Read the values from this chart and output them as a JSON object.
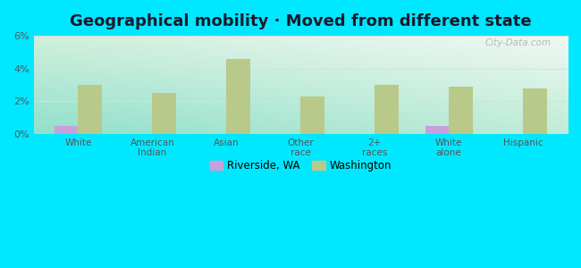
{
  "title": "Geographical mobility · Moved from different state",
  "categories": [
    "White",
    "American\nIndian",
    "Asian",
    "Other\nrace",
    "2+\nraces",
    "White\nalone",
    "Hispanic"
  ],
  "riverside_values": [
    0.5,
    0.0,
    0.0,
    0.0,
    0.0,
    0.5,
    0.0
  ],
  "washington_values": [
    3.0,
    2.5,
    4.6,
    2.3,
    3.0,
    2.9,
    2.8
  ],
  "riverside_color": "#c9a0dc",
  "washington_color": "#b8c98a",
  "ylim": [
    0,
    6
  ],
  "yticks": [
    0,
    2,
    4,
    6
  ],
  "ytick_labels": [
    "0%",
    "2%",
    "4%",
    "6%"
  ],
  "background_outer": "#00e8ff",
  "grid_color": "#dddddd",
  "title_fontsize": 13,
  "legend_labels": [
    "Riverside, WA",
    "Washington"
  ],
  "bar_width": 0.32,
  "watermark": "City-Data.com",
  "bg_top_left": "#d0f0dc",
  "bg_top_right": "#f0f8f4",
  "bg_bottom_left": "#a0e8d8",
  "bg_bottom_right": "#d8f0e8"
}
